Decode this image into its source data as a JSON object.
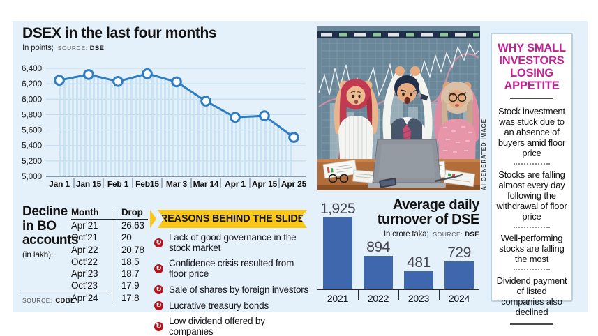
{
  "chart_data": [
    {
      "id": "dsex-index",
      "type": "line",
      "title": "DSEX in the last four months",
      "unit": "In points;",
      "source_label": "SOURCE:",
      "source": "DSE",
      "x": [
        "Jan 1",
        "Jan 15",
        "Feb 1",
        "Feb15",
        "Mar 3",
        "Mar 14",
        "Apr 1",
        "Apr 15",
        "Apr 25"
      ],
      "values": [
        6245,
        6320,
        6230,
        6330,
        6225,
        5975,
        5765,
        5785,
        5505
      ],
      "ylim": [
        5000,
        6400
      ],
      "yticks": [
        6400,
        6200,
        6000,
        5800,
        5600,
        5400,
        5200,
        5000
      ],
      "grid": true,
      "marker": "circle",
      "area_fill": "striped"
    },
    {
      "id": "dse-turnover",
      "type": "bar",
      "title": "Average daily turnover of DSE",
      "title_lines": [
        "Average daily",
        "turnover of DSE"
      ],
      "unit": "In crore taka;",
      "source_label": "SOURCE:",
      "source": "DSE",
      "categories": [
        "2021",
        "2022",
        "2023",
        "2024"
      ],
      "values": [
        1925,
        894,
        481,
        729
      ],
      "value_labels": [
        "1,925",
        "894",
        "481",
        "729"
      ],
      "ylim": [
        0,
        2000
      ]
    }
  ],
  "bo_accounts": {
    "title_lines": [
      "Decline",
      "in BO",
      "accounts"
    ],
    "unit": "(in lakh);",
    "source_label": "SOURCE:",
    "source": "CDBL",
    "columns": [
      "Month",
      "Drop"
    ],
    "rows": [
      [
        "Apr’21",
        "26.63"
      ],
      [
        "Oct’21",
        "20"
      ],
      [
        "Apr’22",
        "20.78"
      ],
      [
        "Oct’22",
        "18.5"
      ],
      [
        "Apr’23",
        "18.7"
      ],
      [
        "Oct’23",
        "17.9"
      ],
      [
        "Apr’24",
        "17.8"
      ]
    ]
  },
  "reasons": {
    "banner": "REASONS BEHIND THE SLIDE",
    "items": [
      "Lack of good governance in the stock market",
      "Confidence crisis resulted from floor price",
      "Sale of shares by foreign investors",
      "Lucrative treasury bonds",
      "Low dividend offered by companies"
    ]
  },
  "why_panel": {
    "title_lines": [
      "WHY SMALL",
      "INVESTORS",
      "LOSING",
      "APPETITE"
    ],
    "paragraphs": [
      "Stock investment was stuck due to an absence of buyers amid floor price",
      "Stocks are falling almost every day following the withdrawal of floor price",
      "Well-performing stocks are falling the most",
      "Dividend payment of listed companies also declined"
    ]
  },
  "ai_image": {
    "caption": "AI GENERATED IMAGE"
  },
  "colors": {
    "panel_bg": "#e4f0fa",
    "line_blue": "#2f7dc2",
    "stripe_blue": "#c9e2f4",
    "grid_blue": "#bed8ea",
    "bar_blue": "#3f67ad",
    "ribbon_yellow": "#f9c81a",
    "bullet_red": "#b5121c",
    "headline_magenta": "#c02392"
  }
}
